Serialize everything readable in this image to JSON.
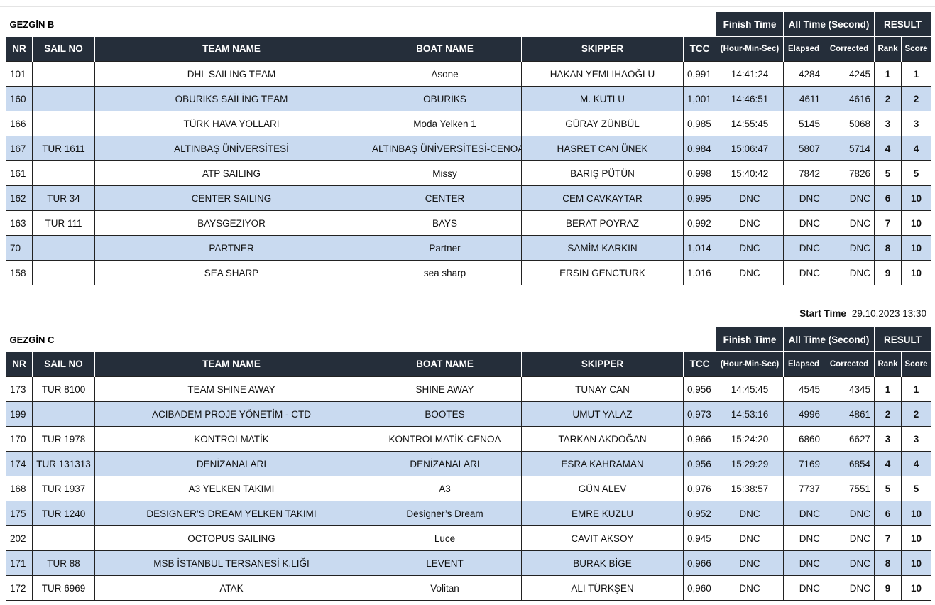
{
  "section_b": {
    "title": "GEZGİN B",
    "header": {
      "finish_time": "Finish Time",
      "all_time": "All Time (Second)",
      "result": "RESULT",
      "nr": "NR",
      "sail_no": "SAIL NO",
      "team_name": "TEAM NAME",
      "boat_name": "BOAT NAME",
      "skipper": "SKIPPER",
      "tcc": "TCC",
      "hour_min_sec": "(Hour-Min-Sec)",
      "elapsed": "Elapsed",
      "corrected": "Corrected",
      "rank": "Rank",
      "score": "Score"
    },
    "rows": [
      {
        "nr": "101",
        "sail_no": "",
        "team": "DHL SAILING TEAM",
        "boat": "Asone",
        "skipper": "HAKAN YEMLIHAOĞLU",
        "tcc": "0,991",
        "finish": "14:41:24",
        "elapsed": "4284",
        "corrected": "4245",
        "rank": "1",
        "score": "1"
      },
      {
        "nr": "160",
        "sail_no": "",
        "team": "OBURİKS SAİLİNG TEAM",
        "boat": "OBURİKS",
        "skipper": "M. KUTLU",
        "tcc": "1,001",
        "finish": "14:46:51",
        "elapsed": "4611",
        "corrected": "4616",
        "rank": "2",
        "score": "2"
      },
      {
        "nr": "166",
        "sail_no": "",
        "team": "TÜRK HAVA YOLLARI",
        "boat": "Moda Yelken 1",
        "skipper": "GÜRAY ZÜNBÜL",
        "tcc": "0,985",
        "finish": "14:55:45",
        "elapsed": "5145",
        "corrected": "5068",
        "rank": "3",
        "score": "3"
      },
      {
        "nr": "167",
        "sail_no": "TUR 1611",
        "team": "ALTINBAŞ ÜNİVERSİTESİ",
        "boat": "ALTINBAŞ ÜNİVERSİTESİ-CENOA",
        "skipper": "HASRET CAN ÜNEK",
        "tcc": "0,984",
        "finish": "15:06:47",
        "elapsed": "5807",
        "corrected": "5714",
        "rank": "4",
        "score": "4"
      },
      {
        "nr": "161",
        "sail_no": "",
        "team": "ATP SAILING",
        "boat": "Missy",
        "skipper": "BARIŞ PÜTÜN",
        "tcc": "0,998",
        "finish": "15:40:42",
        "elapsed": "7842",
        "corrected": "7826",
        "rank": "5",
        "score": "5"
      },
      {
        "nr": "162",
        "sail_no": "TUR 34",
        "team": "CENTER SAILING",
        "boat": "CENTER",
        "skipper": "CEM CAVKAYTAR",
        "tcc": "0,995",
        "finish": "DNC",
        "elapsed": "DNC",
        "corrected": "DNC",
        "rank": "6",
        "score": "10"
      },
      {
        "nr": "163",
        "sail_no": "TUR 111",
        "team": "BAYSGEZIYOR",
        "boat": "BAYS",
        "skipper": "BERAT POYRAZ",
        "tcc": "0,992",
        "finish": "DNC",
        "elapsed": "DNC",
        "corrected": "DNC",
        "rank": "7",
        "score": "10"
      },
      {
        "nr": "70",
        "sail_no": "",
        "team": "PARTNER",
        "boat": "Partner",
        "skipper": "SAMİM KARKIN",
        "tcc": "1,014",
        "finish": "DNC",
        "elapsed": "DNC",
        "corrected": "DNC",
        "rank": "8",
        "score": "10"
      },
      {
        "nr": "158",
        "sail_no": "",
        "team": "SEA SHARP",
        "boat": "sea sharp",
        "skipper": "ERSIN GENCTURK",
        "tcc": "1,016",
        "finish": "DNC",
        "elapsed": "DNC",
        "corrected": "DNC",
        "rank": "9",
        "score": "10"
      }
    ]
  },
  "start_time": {
    "label": "Start Time",
    "value": "29.10.2023 13:30"
  },
  "section_c": {
    "title": "GEZGİN C",
    "header": {
      "finish_time": "Finish Time",
      "all_time": "All Time (Second)",
      "result": "RESULT",
      "nr": "NR",
      "sail_no": "SAIL NO",
      "team_name": "TEAM NAME",
      "boat_name": "BOAT NAME",
      "skipper": "SKIPPER",
      "tcc": "TCC",
      "hour_min_sec": "(Hour-Min-Sec)",
      "elapsed": "Elapsed",
      "corrected": "Corrected",
      "rank": "Rank",
      "score": "Score"
    },
    "rows": [
      {
        "nr": "173",
        "sail_no": "TUR 8100",
        "team": "TEAM SHINE AWAY",
        "boat": "SHINE AWAY",
        "skipper": "TUNAY CAN",
        "tcc": "0,956",
        "finish": "14:45:45",
        "elapsed": "4545",
        "corrected": "4345",
        "rank": "1",
        "score": "1"
      },
      {
        "nr": "199",
        "sail_no": "",
        "team": "ACIBADEM PROJE YÖNETİM - CTD",
        "boat": "BOOTES",
        "skipper": "UMUT YALAZ",
        "tcc": "0,973",
        "finish": "14:53:16",
        "elapsed": "4996",
        "corrected": "4861",
        "rank": "2",
        "score": "2"
      },
      {
        "nr": "170",
        "sail_no": "TUR 1978",
        "team": "KONTROLMATİK",
        "boat": "KONTROLMATİK-CENOA",
        "skipper": "TARKAN AKDOĞAN",
        "tcc": "0,966",
        "finish": "15:24:20",
        "elapsed": "6860",
        "corrected": "6627",
        "rank": "3",
        "score": "3"
      },
      {
        "nr": "174",
        "sail_no": "TUR 131313",
        "team": "DENİZANALARI",
        "boat": "DENİZANALARI",
        "skipper": "ESRA KAHRAMAN",
        "tcc": "0,956",
        "finish": "15:29:29",
        "elapsed": "7169",
        "corrected": "6854",
        "rank": "4",
        "score": "4"
      },
      {
        "nr": "168",
        "sail_no": "TUR 1937",
        "team": "A3 YELKEN TAKIMI",
        "boat": "A3",
        "skipper": "GÜN ALEV",
        "tcc": "0,976",
        "finish": "15:38:57",
        "elapsed": "7737",
        "corrected": "7551",
        "rank": "5",
        "score": "5"
      },
      {
        "nr": "175",
        "sail_no": "TUR 1240",
        "team": "DESIGNER’S DREAM YELKEN TAKIMI",
        "boat": "Designer’s Dream",
        "skipper": "EMRE KUZLU",
        "tcc": "0,952",
        "finish": "DNC",
        "elapsed": "DNC",
        "corrected": "DNC",
        "rank": "6",
        "score": "10"
      },
      {
        "nr": "202",
        "sail_no": "",
        "team": "OCTOPUS SAILING",
        "boat": "Luce",
        "skipper": "CAVIT AKSOY",
        "tcc": "0,945",
        "finish": "DNC",
        "elapsed": "DNC",
        "corrected": "DNC",
        "rank": "7",
        "score": "10"
      },
      {
        "nr": "171",
        "sail_no": "TUR 88",
        "team": "MSB İSTANBUL TERSANESİ K.LIĞI",
        "boat": "LEVENT",
        "skipper": "BURAK BİGE",
        "tcc": "0,966",
        "finish": "DNC",
        "elapsed": "DNC",
        "corrected": "DNC",
        "rank": "8",
        "score": "10"
      },
      {
        "nr": "172",
        "sail_no": "TUR 6969",
        "team": "ATAK",
        "boat": "Volitan",
        "skipper": "ALI TÜRKŞEN",
        "tcc": "0,960",
        "finish": "DNC",
        "elapsed": "DNC",
        "corrected": "DNC",
        "rank": "9",
        "score": "10"
      }
    ]
  }
}
